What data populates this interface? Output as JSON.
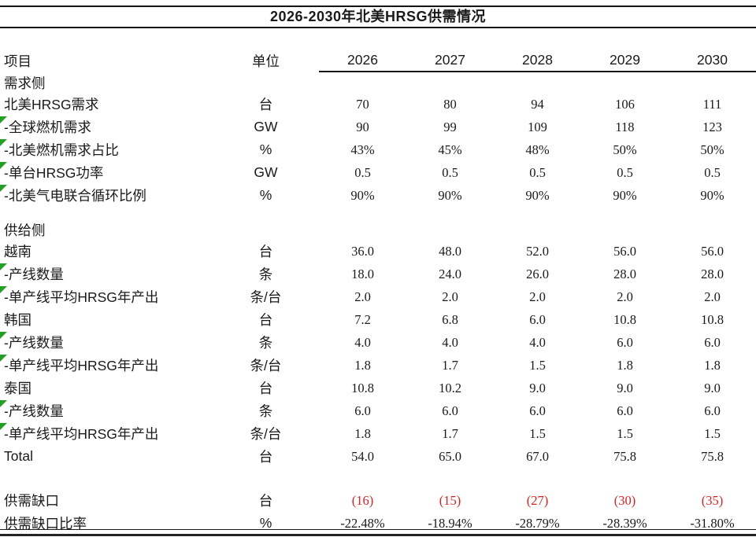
{
  "colors": {
    "negative_red": "#dd1f1f",
    "marker_green": "#21a121",
    "text": "#1a1a1a",
    "rule": "#141414"
  },
  "chart_data": {
    "type": "table",
    "title": "2026-2030年北美HRSG供需情况",
    "columns": {
      "item": "项目",
      "unit": "单位",
      "years": [
        "2026",
        "2027",
        "2028",
        "2029",
        "2030"
      ]
    },
    "rows": [
      {
        "type": "section",
        "label": "需求侧"
      },
      {
        "type": "data",
        "label": "北美HRSG需求",
        "unit": "台",
        "values": [
          "70",
          "80",
          "94",
          "106",
          "111"
        ]
      },
      {
        "type": "data",
        "marker": true,
        "label": "-全球燃机需求",
        "unit": "GW",
        "values": [
          "90",
          "99",
          "109",
          "118",
          "123"
        ]
      },
      {
        "type": "data",
        "marker": true,
        "label": "-北美燃机需求占比",
        "unit": "%",
        "values": [
          "43%",
          "45%",
          "48%",
          "50%",
          "50%"
        ]
      },
      {
        "type": "data",
        "marker": true,
        "label": "-单台HRSG功率",
        "unit": "GW",
        "values": [
          "0.5",
          "0.5",
          "0.5",
          "0.5",
          "0.5"
        ]
      },
      {
        "type": "data",
        "marker": true,
        "label": "-北美气电联合循环比例",
        "unit": "%",
        "values": [
          "90%",
          "90%",
          "90%",
          "90%",
          "90%"
        ]
      },
      {
        "type": "blank"
      },
      {
        "type": "section",
        "label": "供给侧"
      },
      {
        "type": "data",
        "label": "越南",
        "unit": "台",
        "values": [
          "36.0",
          "48.0",
          "52.0",
          "56.0",
          "56.0"
        ]
      },
      {
        "type": "data",
        "marker": true,
        "label": "-产线数量",
        "unit": "条",
        "values": [
          "18.0",
          "24.0",
          "26.0",
          "28.0",
          "28.0"
        ]
      },
      {
        "type": "data",
        "marker": true,
        "label": "-单产线平均HRSG年产出",
        "unit": "条/台",
        "values": [
          "2.0",
          "2.0",
          "2.0",
          "2.0",
          "2.0"
        ]
      },
      {
        "type": "data",
        "label": "韩国",
        "unit": "台",
        "values": [
          "7.2",
          "6.8",
          "6.0",
          "10.8",
          "10.8"
        ]
      },
      {
        "type": "data",
        "marker": true,
        "label": "-产线数量",
        "unit": "条",
        "values": [
          "4.0",
          "4.0",
          "4.0",
          "6.0",
          "6.0"
        ]
      },
      {
        "type": "data",
        "marker": true,
        "label": "-单产线平均HRSG年产出",
        "unit": "条/台",
        "values": [
          "1.8",
          "1.7",
          "1.5",
          "1.8",
          "1.8"
        ]
      },
      {
        "type": "data",
        "label": "泰国",
        "unit": "台",
        "values": [
          "10.8",
          "10.2",
          "9.0",
          "9.0",
          "9.0"
        ]
      },
      {
        "type": "data",
        "marker": true,
        "label": "-产线数量",
        "unit": "条",
        "values": [
          "6.0",
          "6.0",
          "6.0",
          "6.0",
          "6.0"
        ]
      },
      {
        "type": "data",
        "marker": true,
        "label": "-单产线平均HRSG年产出",
        "unit": "条/台",
        "values": [
          "1.8",
          "1.7",
          "1.5",
          "1.5",
          "1.5"
        ]
      },
      {
        "type": "data",
        "label": "Total",
        "unit": "台",
        "values": [
          "54.0",
          "65.0",
          "67.0",
          "75.8",
          "75.8"
        ]
      },
      {
        "type": "blank",
        "tall": true
      },
      {
        "type": "data",
        "label": "供需缺口",
        "unit": "台",
        "values": [
          "(16)",
          "(15)",
          "(27)",
          "(30)",
          "(35)"
        ],
        "value_color": "red"
      },
      {
        "type": "data",
        "label": "供需缺口比率",
        "unit": "%",
        "values": [
          "-22.48%",
          "-18.94%",
          "-28.79%",
          "-28.39%",
          "-31.80%"
        ]
      }
    ]
  }
}
